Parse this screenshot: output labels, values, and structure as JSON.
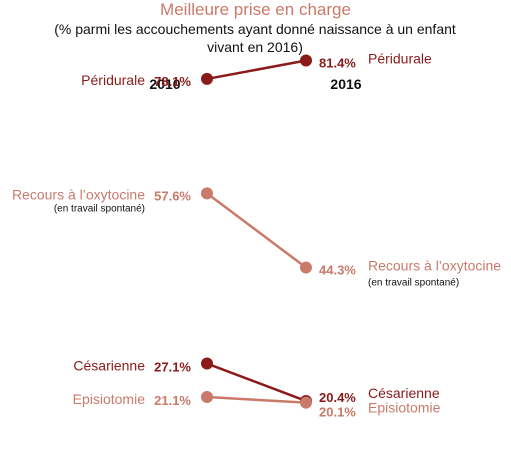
{
  "chart_data": {
    "type": "line",
    "title": "Meilleure prise en charge",
    "subtitle": "(% parmi les accouchements ayant donné naissance à un enfant vivant en 2016)",
    "x": [
      "2010",
      "2016"
    ],
    "series": [
      {
        "name": "Péridurale",
        "note": "",
        "values": [
          78.1,
          81.4
        ],
        "labels": [
          "78.1%",
          "81.4%"
        ],
        "color": "#8b1a1a"
      },
      {
        "name": "Recours à l’oxytocine",
        "note": "(en travail spontané)",
        "values": [
          57.6,
          44.3
        ],
        "labels": [
          "57.6%",
          "44.3%"
        ],
        "color": "#c97a6b"
      },
      {
        "name": "Césarienne",
        "note": "",
        "values": [
          27.1,
          20.4
        ],
        "labels": [
          "27.1%",
          "20.4%"
        ],
        "color": "#8b1a1a"
      },
      {
        "name": "Episiotomie",
        "note": "",
        "values": [
          21.1,
          20.1
        ],
        "labels": [
          "21.1%",
          "20.1%"
        ],
        "color": "#c97a6b"
      }
    ],
    "legend": "none",
    "grid": false
  },
  "colors": {
    "title": "#c97a6b",
    "dark": "#8b1a1a",
    "light": "#c97a6b"
  }
}
